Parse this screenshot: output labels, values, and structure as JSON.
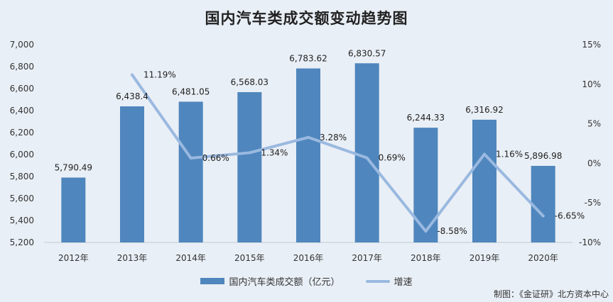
{
  "chart_data": {
    "type": "bar",
    "title": "国内汽车类成交额变动趋势图",
    "categories": [
      "2012年",
      "2013年",
      "2014年",
      "2015年",
      "2016年",
      "2017年",
      "2018年",
      "2019年",
      "2020年"
    ],
    "series": [
      {
        "name": "国内汽车类成交额（亿元）",
        "type": "bar",
        "axis": "left",
        "color": "#4f86bd",
        "values": [
          5790.49,
          6438.4,
          6481.05,
          6568.03,
          6783.62,
          6830.57,
          6244.33,
          6316.92,
          5896.98
        ],
        "labels": [
          "5,790.49",
          "6,438.4",
          "6,481.05",
          "6,568.03",
          "6,783.62",
          "6,830.57",
          "6,244.33",
          "6,316.92",
          "5,896.98"
        ]
      },
      {
        "name": "增速",
        "type": "line",
        "axis": "right",
        "color": "#9ab9e0",
        "values": [
          null,
          11.19,
          0.66,
          1.34,
          3.28,
          0.69,
          -8.58,
          1.16,
          -6.65
        ],
        "labels": [
          "",
          "11.19%",
          "0.66%",
          "1.34%",
          "3.28%",
          "0.69%",
          "-8.58%",
          "1.16%",
          "-6.65%"
        ]
      }
    ],
    "y_left": {
      "min": 5200,
      "max": 7000,
      "ticks": [
        "5,200",
        "5,400",
        "5,600",
        "5,800",
        "6,000",
        "6,200",
        "6,400",
        "6,600",
        "6,800",
        "7,000"
      ]
    },
    "y_right": {
      "min": -10,
      "max": 15,
      "unit": "%",
      "ticks": [
        "-10%",
        "-5%",
        "0%",
        "5%",
        "10%",
        "15%"
      ]
    },
    "legend": {
      "position": "bottom"
    },
    "grid": false,
    "credit": "制图：《金证研》北方资本中心"
  }
}
